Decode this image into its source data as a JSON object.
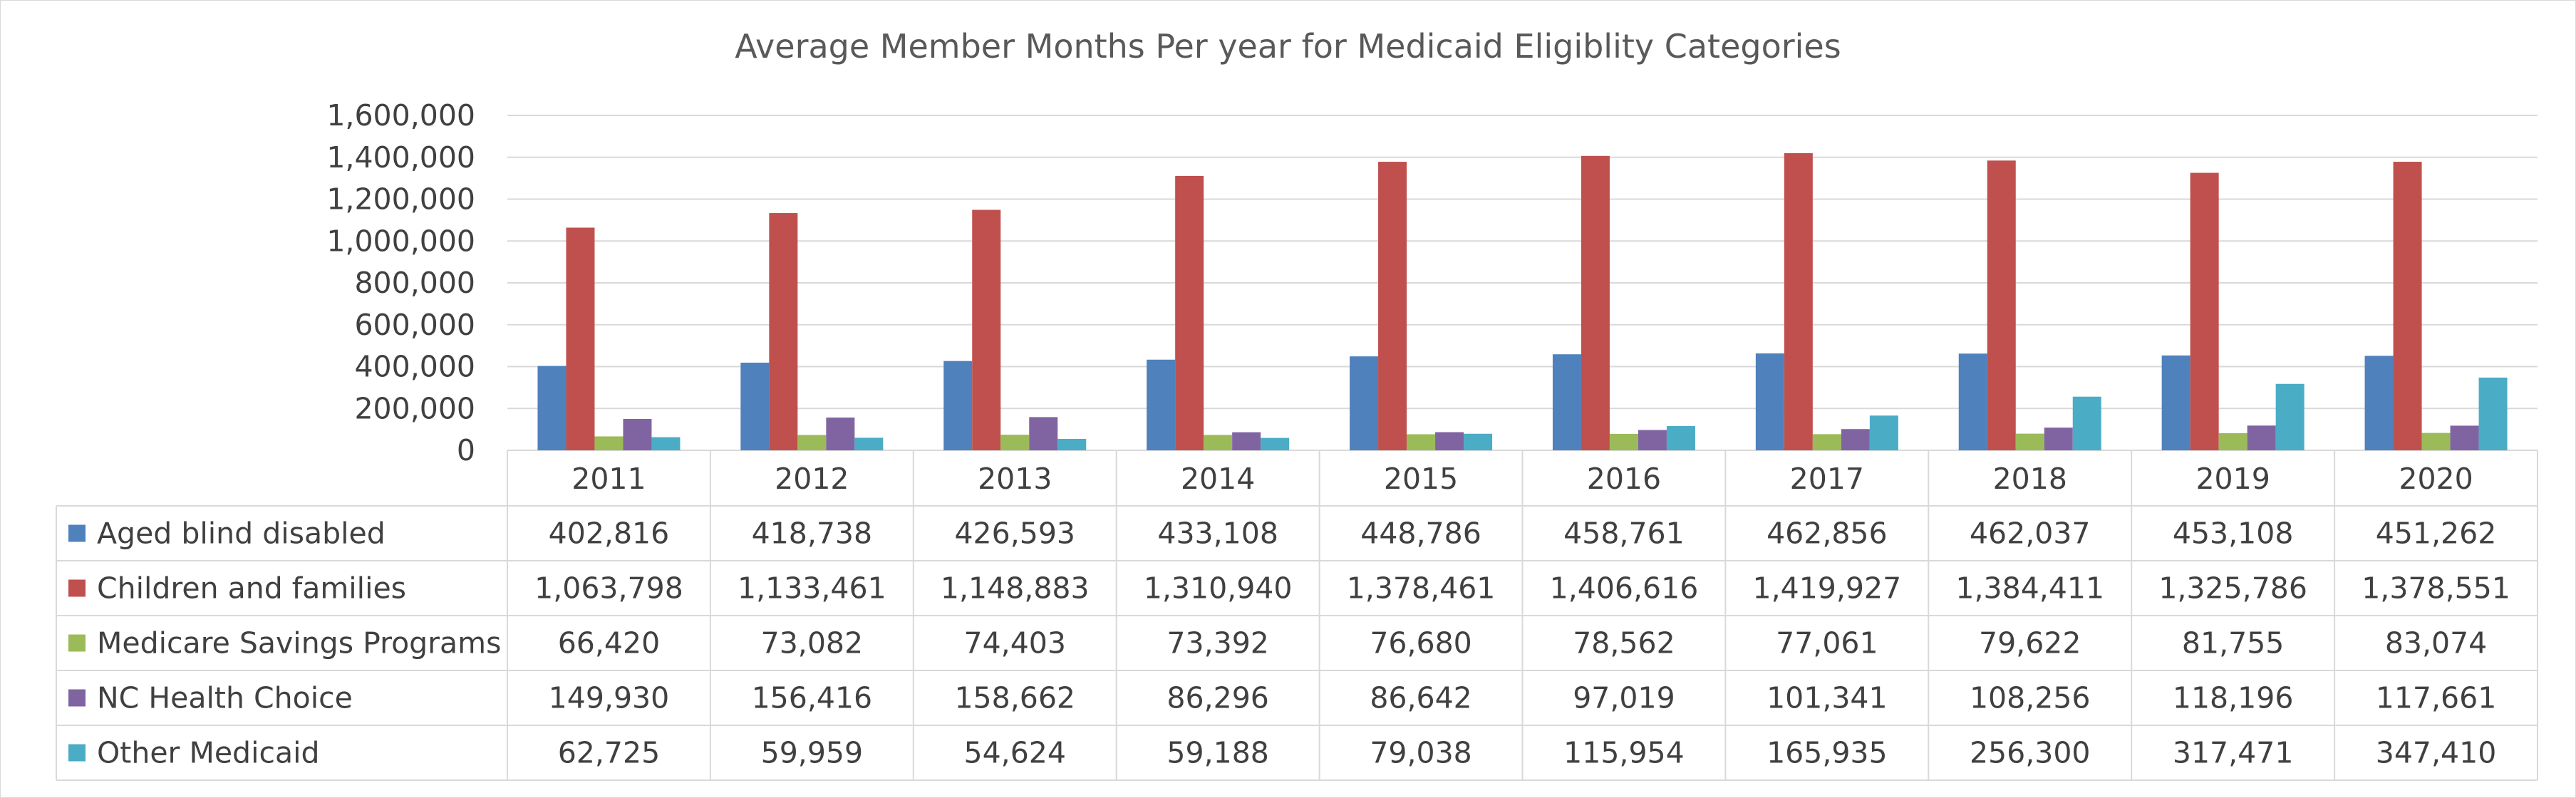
{
  "chart_data": {
    "type": "bar",
    "title": "Average Member Months Per year for Medicaid Eligiblity Categories",
    "xlabel": "",
    "ylabel": "",
    "ylim": [
      0,
      1600000
    ],
    "y_ticks": [
      "0",
      "200,000",
      "400,000",
      "600,000",
      "800,000",
      "1,000,000",
      "1,200,000",
      "1,400,000",
      "1,600,000"
    ],
    "grid": true,
    "legend": "data table",
    "categories": [
      "2011",
      "2012",
      "2013",
      "2014",
      "2015",
      "2016",
      "2017",
      "2018",
      "2019",
      "2020"
    ],
    "series": [
      {
        "name": "Aged blind disabled",
        "color": "#4f81bd",
        "values": [
          402816,
          418738,
          426593,
          433108,
          448786,
          458761,
          462856,
          462037,
          453108,
          451262
        ],
        "labels": [
          "402,816",
          "418,738",
          "426,593",
          "433,108",
          "448,786",
          "458,761",
          "462,856",
          "462,037",
          "453,108",
          "451,262"
        ]
      },
      {
        "name": "Children and families",
        "color": "#c0504d",
        "values": [
          1063798,
          1133461,
          1148883,
          1310940,
          1378461,
          1406616,
          1419927,
          1384411,
          1325786,
          1378551
        ],
        "labels": [
          "1,063,798",
          "1,133,461",
          "1,148,883",
          "1,310,940",
          "1,378,461",
          "1,406,616",
          "1,419,927",
          "1,384,411",
          "1,325,786",
          "1,378,551"
        ]
      },
      {
        "name": "Medicare Savings Programs",
        "color": "#9bbb59",
        "values": [
          66420,
          73082,
          74403,
          73392,
          76680,
          78562,
          77061,
          79622,
          81755,
          83074
        ],
        "labels": [
          "66,420",
          "73,082",
          "74,403",
          "73,392",
          "76,680",
          "78,562",
          "77,061",
          "79,622",
          "81,755",
          "83,074"
        ]
      },
      {
        "name": "NC Health Choice",
        "color": "#8064a2",
        "values": [
          149930,
          156416,
          158662,
          86296,
          86642,
          97019,
          101341,
          108256,
          118196,
          117661
        ],
        "labels": [
          "149,930",
          "156,416",
          "158,662",
          "86,296",
          "86,642",
          "97,019",
          "101,341",
          "108,256",
          "118,196",
          "117,661"
        ]
      },
      {
        "name": "Other Medicaid",
        "color": "#4bacc6",
        "values": [
          62725,
          59959,
          54624,
          59188,
          79038,
          115954,
          165935,
          256300,
          317471,
          347410
        ],
        "labels": [
          "62,725",
          "59,959",
          "54,624",
          "59,188",
          "79,038",
          "115,954",
          "165,935",
          "256,300",
          "317,471",
          "347,410"
        ]
      }
    ]
  }
}
